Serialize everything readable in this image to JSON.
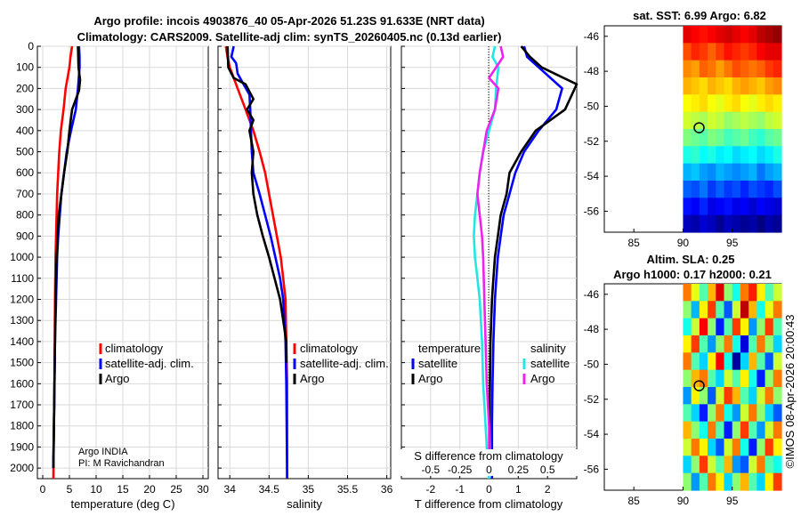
{
  "header": {
    "line1": "Argo profile: incois 4903876_40 05-Apr-2026 51.23S 91.633E (NRT data)",
    "line2": "Climatology: CARS2009. Satellite-adj clim: synTS_20260405.nc (0.13d earlier)"
  },
  "colors": {
    "climatology": "#ff0000",
    "satellite": "#0000ff",
    "argo": "#000000",
    "sal_satellite": "#22e5e5",
    "sal_argo": "#ee22ee"
  },
  "depth_axis": {
    "ylim": [
      0,
      2050
    ],
    "ticks": [
      "0",
      "100",
      "200",
      "300",
      "400",
      "500",
      "600",
      "700",
      "800",
      "900",
      "1000",
      "1100",
      "1200",
      "1300",
      "1400",
      "1500",
      "1600",
      "1700",
      "1800",
      "1900",
      "2000"
    ]
  },
  "chart_data": [
    {
      "id": "temperature",
      "type": "line",
      "xlabel": "temperature (deg C)",
      "xlim": [
        -1,
        31
      ],
      "xticks": [
        "0",
        "5",
        "10",
        "15",
        "20",
        "25",
        "30"
      ],
      "legend": {
        "items": [
          "climatology",
          "satellite-adj. clim.",
          "Argo"
        ]
      },
      "annotation": [
        "Argo INDIA",
        "PI: M Ravichandran"
      ],
      "series": [
        {
          "name": "climatology",
          "color": "#ff0000",
          "x": [
            5.5,
            5.2,
            5.0,
            4.3,
            3.9,
            3.4,
            3.1,
            2.9,
            2.7,
            2.6,
            2.5,
            2.4,
            2.3,
            2.25,
            2.2,
            2.15,
            2.1,
            2.05,
            2.0
          ],
          "y": [
            0,
            50,
            100,
            200,
            300,
            400,
            500,
            600,
            700,
            800,
            900,
            1000,
            1200,
            1400,
            1600,
            1700,
            1800,
            1900,
            2050
          ]
        },
        {
          "name": "satellite-adj. clim.",
          "color": "#0000ff",
          "x": [
            6.8,
            6.9,
            6.9,
            6.6,
            6.2,
            5.3,
            4.5,
            4.0,
            3.5,
            3.2,
            2.9,
            2.7,
            2.5,
            2.3,
            2.2,
            2.1,
            2.0
          ],
          "y": [
            0,
            50,
            100,
            200,
            300,
            400,
            500,
            600,
            700,
            800,
            900,
            1000,
            1200,
            1400,
            1600,
            1800,
            2000
          ]
        },
        {
          "name": "Argo",
          "color": "#000000",
          "x": [
            6.6,
            6.7,
            7.0,
            6.8,
            5.5,
            5.0,
            4.6,
            4.0,
            3.5,
            3.0,
            2.8,
            2.6,
            2.5,
            2.4,
            2.3,
            2.2,
            2.1,
            2.0,
            2.0
          ],
          "y": [
            0,
            100,
            160,
            210,
            300,
            400,
            500,
            600,
            700,
            800,
            900,
            1000,
            1100,
            1200,
            1400,
            1600,
            1800,
            1950,
            2000
          ]
        }
      ]
    },
    {
      "id": "salinity",
      "type": "line",
      "xlabel": "salinity",
      "xlim": [
        33.85,
        36.05
      ],
      "xticks": [
        "34",
        "34.5",
        "35",
        "35.5",
        "36"
      ],
      "legend": {
        "items": [
          "climatology",
          "satellite-adj. clim.",
          "Argo"
        ]
      },
      "series": [
        {
          "name": "climatology",
          "color": "#ff0000",
          "x": [
            33.95,
            33.97,
            34.0,
            34.1,
            34.2,
            34.3,
            34.38,
            34.45,
            34.5,
            34.55,
            34.6,
            34.65,
            34.68,
            34.71,
            34.72,
            34.73,
            34.73
          ],
          "y": [
            0,
            50,
            100,
            200,
            300,
            400,
            500,
            600,
            700,
            800,
            900,
            1000,
            1100,
            1200,
            1400,
            1600,
            2050
          ]
        },
        {
          "name": "satellite-adj. clim.",
          "color": "#0000ff",
          "x": [
            34.05,
            34.02,
            34.08,
            34.1,
            34.25,
            34.26,
            34.27,
            34.28,
            34.3,
            34.38,
            34.45,
            34.52,
            34.58,
            34.64,
            34.68,
            34.71,
            34.72,
            34.73
          ],
          "y": [
            0,
            50,
            80,
            130,
            230,
            300,
            400,
            500,
            600,
            700,
            800,
            900,
            1000,
            1100,
            1200,
            1400,
            1600,
            2050
          ]
        },
        {
          "name": "Argo",
          "color": "#000000",
          "x": [
            33.97,
            33.98,
            34.05,
            34.2,
            34.3,
            34.22,
            34.3,
            34.25,
            34.3,
            34.28,
            34.3,
            34.35,
            34.42,
            34.5,
            34.57,
            34.64,
            34.68,
            34.72,
            34.72
          ],
          "y": [
            0,
            100,
            150,
            180,
            250,
            300,
            350,
            400,
            500,
            600,
            700,
            800,
            900,
            1000,
            1100,
            1200,
            1300,
            1400,
            1500
          ]
        }
      ]
    },
    {
      "id": "differences",
      "type": "line",
      "xlabel": "T difference from climatology",
      "xlim": [
        -3,
        3
      ],
      "xticks": [
        "-2",
        "-1",
        "0",
        "1",
        "2"
      ],
      "top_label": "S difference from climatology",
      "top_ticks": [
        "-0.5",
        "-0.25",
        "0",
        "0.25",
        "0.5"
      ],
      "top_xlim": [
        -0.75,
        0.75
      ],
      "legend_temperature": {
        "heading": "temperature",
        "items": [
          "satellite",
          "Argo"
        ]
      },
      "legend_salinity": {
        "heading": "salinity",
        "items": [
          "satellite",
          "Argo"
        ]
      },
      "series": [
        {
          "name": "T satellite",
          "color": "#0000ff",
          "x": [
            1.2,
            1.3,
            1.7,
            2.5,
            2.3,
            1.7,
            1.2,
            0.9,
            0.7,
            0.5,
            0.4,
            0.3,
            0.25,
            0.2,
            0.15,
            0.12,
            0.1,
            0.1
          ],
          "y": [
            0,
            50,
            100,
            200,
            300,
            400,
            500,
            600,
            700,
            800,
            900,
            1000,
            1100,
            1200,
            1400,
            1600,
            1800,
            2050
          ]
        },
        {
          "name": "T Argo",
          "color": "#000000",
          "x": [
            1.1,
            1.4,
            1.8,
            3.1,
            2.6,
            1.6,
            1.1,
            0.7,
            0.6,
            0.4,
            0.3,
            0.2,
            0.15,
            0.1,
            0.05,
            0.03,
            0.0
          ],
          "y": [
            0,
            50,
            100,
            180,
            300,
            400,
            500,
            600,
            700,
            800,
            900,
            1000,
            1100,
            1200,
            1400,
            1600,
            2000
          ]
        },
        {
          "name": "S satellite",
          "color": "#22e5e5",
          "x": [
            0.05,
            0.03,
            0.08,
            0.06,
            0.05,
            0.0,
            -0.05,
            -0.08,
            -0.1,
            -0.12,
            -0.13,
            -0.12,
            -0.1,
            -0.08,
            -0.06,
            -0.05,
            -0.03,
            -0.02,
            0.0
          ],
          "y": [
            0,
            50,
            100,
            200,
            300,
            400,
            500,
            600,
            700,
            800,
            900,
            1000,
            1100,
            1200,
            1400,
            1600,
            1800,
            1900,
            2050
          ]
        },
        {
          "name": "S Argo",
          "color": "#ee22ee",
          "x": [
            0.1,
            0.12,
            0.0,
            0.08,
            0.05,
            -0.02,
            -0.05,
            -0.08,
            -0.1,
            -0.08,
            -0.06,
            -0.05,
            -0.04,
            -0.03,
            -0.02,
            0.0,
            0.0
          ],
          "y": [
            0,
            50,
            150,
            200,
            300,
            400,
            500,
            600,
            700,
            800,
            900,
            1000,
            1200,
            1400,
            1600,
            1800,
            2000
          ]
        }
      ]
    },
    {
      "id": "sst_map",
      "type": "heatmap",
      "title": "sat. SST: 6.99 Argo: 6.82",
      "lon_ticks": [
        "85",
        "90",
        "95"
      ],
      "lat_ticks": [
        "-46",
        "-48",
        "-50",
        "-52",
        "-54",
        "-56"
      ],
      "lon_range": [
        82,
        100
      ],
      "lat_range": [
        -57.2,
        -45.4
      ],
      "data_lon_start": 90,
      "marker": {
        "lon": 91.633,
        "lat": -51.23
      },
      "value_rows": [
        [
          7.9,
          7.8,
          7.7,
          7.8,
          7.9,
          8.0,
          7.9,
          7.8,
          7.9,
          8.1,
          8.2,
          8.3
        ],
        [
          7.4,
          7.6,
          7.5,
          7.3,
          7.5,
          7.7,
          7.6,
          7.5,
          7.6,
          7.8,
          7.9,
          7.9
        ],
        [
          7.1,
          7.0,
          7.3,
          7.2,
          7.0,
          7.2,
          7.4,
          7.3,
          7.2,
          7.3,
          7.5,
          7.6
        ],
        [
          6.9,
          6.8,
          6.7,
          6.9,
          6.8,
          6.7,
          6.9,
          7.0,
          6.9,
          6.8,
          7.0,
          7.1
        ],
        [
          6.5,
          6.6,
          6.7,
          6.5,
          6.4,
          6.6,
          6.7,
          6.5,
          6.4,
          6.6,
          6.7,
          6.6
        ],
        [
          6.3,
          6.2,
          6.1,
          6.3,
          6.2,
          6.0,
          6.1,
          6.2,
          6.1,
          6.0,
          6.2,
          6.3
        ],
        [
          5.9,
          5.8,
          5.7,
          5.9,
          5.8,
          5.6,
          5.7,
          5.8,
          5.6,
          5.5,
          5.7,
          5.8
        ],
        [
          5.4,
          5.5,
          5.3,
          5.4,
          5.2,
          5.3,
          5.1,
          5.2,
          5.3,
          5.1,
          5.2,
          5.4
        ],
        [
          4.9,
          5.0,
          4.8,
          4.7,
          4.9,
          4.8,
          4.7,
          4.8,
          4.9,
          4.6,
          4.8,
          4.9
        ],
        [
          4.5,
          4.4,
          4.6,
          4.3,
          4.5,
          4.3,
          4.4,
          4.2,
          4.4,
          4.3,
          4.2,
          4.4
        ],
        [
          4.1,
          4.0,
          4.2,
          3.9,
          4.0,
          4.1,
          3.9,
          4.0,
          3.8,
          4.0,
          3.9,
          3.8
        ],
        [
          3.7,
          3.6,
          3.8,
          3.7,
          3.5,
          3.7,
          3.6,
          3.5,
          3.6,
          3.4,
          3.6,
          3.5
        ]
      ],
      "color_range": [
        3.4,
        8.4
      ]
    },
    {
      "id": "sla_map",
      "type": "heatmap",
      "title": "Altim. SLA: 0.25",
      "subtitle": "Argo h1000: 0.17 h2000: 0.21",
      "lon_ticks": [
        "85",
        "90",
        "95"
      ],
      "lat_ticks": [
        "-46",
        "-48",
        "-50",
        "-52",
        "-54",
        "-56"
      ],
      "lon_range": [
        82,
        100
      ],
      "lat_range": [
        -57.2,
        -45.4
      ],
      "data_lon_start": 90,
      "marker": {
        "lon": 91.633,
        "lat": -51.23
      },
      "value_rows": [
        [
          0.3,
          0.25,
          0.2,
          0.28,
          0.35,
          0.22,
          0.18,
          0.3,
          0.33,
          0.26,
          0.2,
          0.24
        ],
        [
          0.22,
          0.15,
          0.26,
          0.32,
          0.2,
          0.12,
          0.24,
          0.36,
          0.28,
          0.18,
          0.25,
          0.3
        ],
        [
          0.18,
          0.24,
          0.34,
          0.22,
          0.1,
          0.2,
          0.32,
          0.26,
          0.14,
          0.22,
          0.32,
          0.2
        ],
        [
          0.26,
          0.32,
          0.2,
          0.14,
          0.22,
          0.3,
          0.18,
          0.08,
          0.2,
          0.3,
          0.22,
          0.16
        ],
        [
          0.3,
          0.2,
          0.16,
          0.26,
          0.34,
          0.18,
          0.06,
          0.16,
          0.28,
          0.2,
          0.12,
          0.24
        ],
        [
          0.22,
          0.28,
          0.3,
          0.2,
          0.16,
          0.24,
          0.2,
          0.26,
          0.18,
          0.1,
          0.22,
          0.3
        ],
        [
          0.14,
          0.26,
          0.22,
          0.12,
          0.24,
          0.32,
          0.28,
          0.2,
          0.16,
          0.24,
          0.3,
          0.22
        ],
        [
          0.2,
          0.16,
          0.1,
          0.22,
          0.3,
          0.18,
          0.14,
          0.24,
          0.3,
          0.22,
          0.16,
          0.12
        ],
        [
          0.28,
          0.22,
          0.18,
          0.3,
          0.2,
          0.1,
          0.22,
          0.32,
          0.2,
          0.14,
          0.24,
          0.3
        ],
        [
          0.24,
          0.3,
          0.26,
          0.16,
          0.12,
          0.24,
          0.3,
          0.18,
          0.1,
          0.22,
          0.32,
          0.26
        ],
        [
          0.16,
          0.22,
          0.32,
          0.24,
          0.2,
          0.28,
          0.14,
          0.12,
          0.24,
          0.3,
          0.2,
          0.18
        ],
        [
          0.22,
          0.14,
          0.2,
          0.3,
          0.26,
          0.16,
          0.22,
          0.28,
          0.2,
          0.16,
          0.26,
          0.32
        ]
      ],
      "color_range": [
        0.05,
        0.38
      ]
    }
  ],
  "footer": {
    "stamp": "©IMOS 08-Apr-2026 20:00:43"
  }
}
